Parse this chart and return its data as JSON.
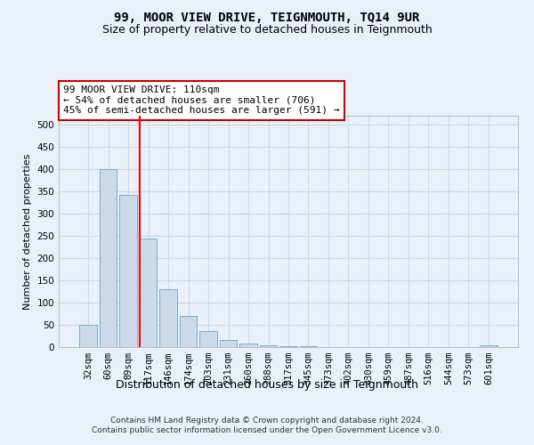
{
  "title": "99, MOOR VIEW DRIVE, TEIGNMOUTH, TQ14 9UR",
  "subtitle": "Size of property relative to detached houses in Teignmouth",
  "xlabel": "Distribution of detached houses by size in Teignmouth",
  "ylabel": "Number of detached properties",
  "footer_line1": "Contains HM Land Registry data © Crown copyright and database right 2024.",
  "footer_line2": "Contains public sector information licensed under the Open Government Licence v3.0.",
  "categories": [
    "32sqm",
    "60sqm",
    "89sqm",
    "117sqm",
    "146sqm",
    "174sqm",
    "203sqm",
    "231sqm",
    "260sqm",
    "288sqm",
    "317sqm",
    "345sqm",
    "373sqm",
    "402sqm",
    "430sqm",
    "459sqm",
    "487sqm",
    "516sqm",
    "544sqm",
    "573sqm",
    "601sqm"
  ],
  "values": [
    51,
    401,
    343,
    245,
    130,
    70,
    36,
    17,
    8,
    5,
    3,
    2,
    1,
    1,
    1,
    1,
    1,
    1,
    1,
    1,
    5
  ],
  "bar_color": "#ccd9e8",
  "bar_edge_color": "#7aaec8",
  "grid_color": "#c8d8e8",
  "background_color": "#eaf0f8",
  "redline_bin_index": 3,
  "annotation_text_line1": "99 MOOR VIEW DRIVE: 110sqm",
  "annotation_text_line2": "← 54% of detached houses are smaller (706)",
  "annotation_text_line3": "45% of semi-detached houses are larger (591) →",
  "annotation_box_facecolor": "#ffffff",
  "annotation_box_edgecolor": "#cc0000",
  "ylim": [
    0,
    520
  ],
  "yticks": [
    0,
    50,
    100,
    150,
    200,
    250,
    300,
    350,
    400,
    450,
    500
  ],
  "title_fontsize": 10,
  "subtitle_fontsize": 9,
  "xlabel_fontsize": 9,
  "ylabel_fontsize": 8,
  "tick_fontsize": 7.5,
  "annotation_fontsize": 8,
  "footer_fontsize": 6.5
}
